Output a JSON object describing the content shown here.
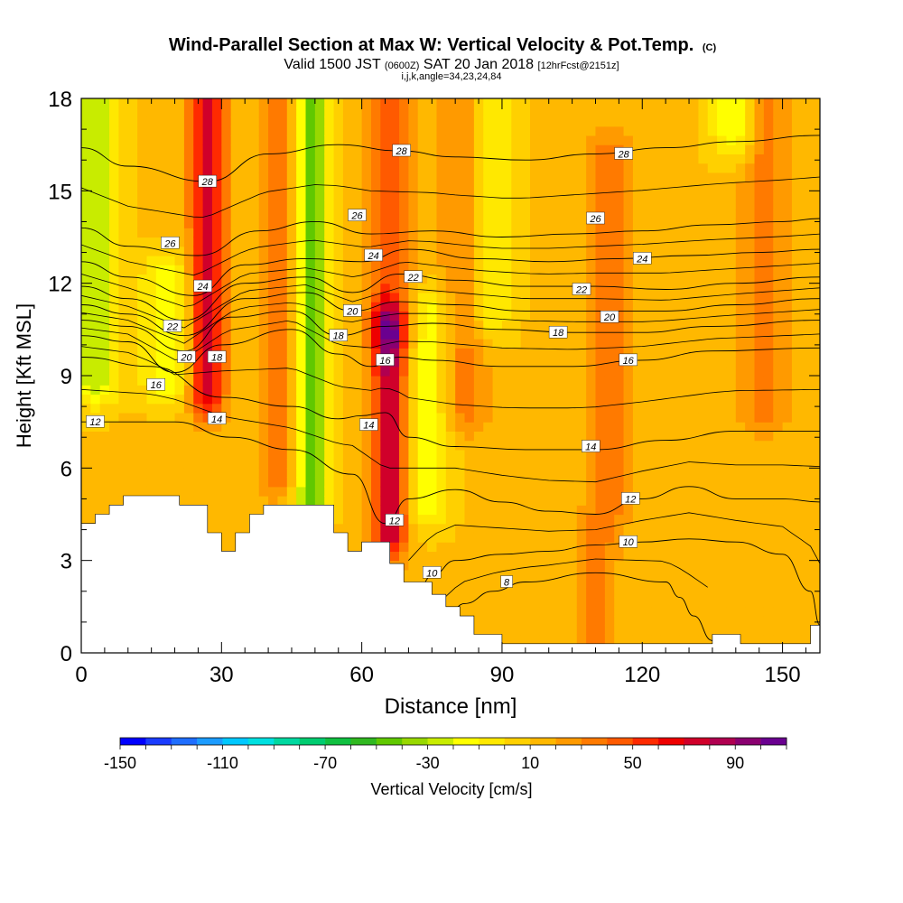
{
  "chart_data": {
    "type": "heatmap",
    "title": "Wind-Parallel Section at Max W: Vertical Velocity & Pot.Temp.",
    "title_mark": "(C)",
    "subtitle": {
      "part1": "Valid 1500 JST",
      "part2": "(0600Z)",
      "part3": "SAT 20 Jan 2018",
      "part4": "[12hrFcst@2151z]"
    },
    "subtitle2": "i,j,k,angle=34,23,24,84",
    "xlabel": "Distance [nm]",
    "ylabel": "Height [Kft MSL]",
    "xlim": [
      0,
      158
    ],
    "ylim": [
      0,
      18
    ],
    "x_ticks": [
      0,
      30,
      60,
      90,
      120,
      150
    ],
    "y_ticks": [
      0,
      3,
      6,
      9,
      12,
      15,
      18
    ],
    "grid": false,
    "colorbar": {
      "label": "Vertical Velocity [cm/s]",
      "min": -150,
      "max": 110,
      "step": 10,
      "tick_labels": [
        "-150",
        "-110",
        "-70",
        "-30",
        "10",
        "50",
        "90"
      ],
      "colors": [
        "#0000ff",
        "#1a3cff",
        "#1f6eff",
        "#1c9cff",
        "#00c8ff",
        "#00e0e0",
        "#00d8a0",
        "#00cc70",
        "#10c040",
        "#30b820",
        "#60c800",
        "#98d800",
        "#c8ec00",
        "#ffff00",
        "#ffe800",
        "#ffd000",
        "#ffb800",
        "#ff9a00",
        "#ff7a00",
        "#ff5a00",
        "#ff2a00",
        "#ee0000",
        "#d0002a",
        "#b00050",
        "#8a0070",
        "#6a0090"
      ]
    },
    "updraft_columns": [
      {
        "x": 27,
        "height_range": [
          8.5,
          18
        ],
        "w": 60
      },
      {
        "x": 43,
        "height_range": [
          6,
          18
        ],
        "w": 30
      },
      {
        "x": 66,
        "height_range": [
          4,
          10.5
        ],
        "w": 70
      },
      {
        "x": 66,
        "height_range": [
          10.5,
          18
        ],
        "w": 30
      },
      {
        "x": 82,
        "height_range": [
          8,
          18
        ],
        "w": 25
      },
      {
        "x": 113,
        "height_range": [
          5,
          16
        ],
        "w": 25
      },
      {
        "x": 146,
        "height_range": [
          8,
          18
        ],
        "w": 25
      },
      {
        "x": 110,
        "height_range": [
          0.5,
          3.5
        ],
        "w": 20
      }
    ],
    "downdraft_columns": [
      {
        "x": 49,
        "height_range": [
          5,
          18
        ],
        "w": -60
      },
      {
        "x": 3,
        "height_range": [
          9,
          18
        ],
        "w": -40
      },
      {
        "x": 18,
        "height_range": [
          9,
          12
        ],
        "w": -30
      },
      {
        "x": 74,
        "height_range": [
          5,
          11
        ],
        "w": -30
      },
      {
        "x": 87,
        "height_range": [
          11,
          18
        ],
        "w": -25
      },
      {
        "x": 140,
        "height_range": [
          17,
          18
        ],
        "w": -35
      }
    ],
    "terrain": {
      "x": [
        0,
        3,
        6,
        9,
        12,
        15,
        18,
        21,
        24,
        27,
        30,
        33,
        36,
        39,
        42,
        45,
        48,
        51,
        54,
        57,
        60,
        63,
        66,
        69,
        72,
        75,
        78,
        81,
        84,
        87,
        90,
        93,
        96,
        99,
        102,
        105,
        108,
        111,
        114,
        117,
        120,
        123,
        126,
        129,
        132,
        135,
        138,
        141,
        144,
        147,
        150,
        153,
        156,
        158
      ],
      "height": [
        4.2,
        4.5,
        4.8,
        5.1,
        5.1,
        5.1,
        5.1,
        4.8,
        4.8,
        3.9,
        3.3,
        3.9,
        4.5,
        4.8,
        4.8,
        4.8,
        4.8,
        4.8,
        3.9,
        3.3,
        3.6,
        3.6,
        2.9,
        2.3,
        2.3,
        1.9,
        1.5,
        1.2,
        0.6,
        0.6,
        0.3,
        0.3,
        0.3,
        0.3,
        0.3,
        0.3,
        0.3,
        0.3,
        0.3,
        0.3,
        0.3,
        0.3,
        0.3,
        0.3,
        0.3,
        0.6,
        0.6,
        0.3,
        0.3,
        0.3,
        0.3,
        0.3,
        0.9,
        0.9
      ]
    },
    "isentropes": [
      {
        "theta": 8,
        "x": [
          76,
          82,
          88,
          95,
          110,
          125,
          128,
          131,
          135
        ],
        "y": [
          0.5,
          1.6,
          2.0,
          2.3,
          2.6,
          2.3,
          1.8,
          1.2,
          0.4
        ],
        "label_at": [
          91,
          2.2
        ]
      },
      {
        "theta": 10,
        "x": [
          70,
          75,
          80,
          90,
          100,
          110,
          120,
          130,
          140,
          150,
          156,
          158
        ],
        "y": [
          1.0,
          2.5,
          3.0,
          3.2,
          3.3,
          3.5,
          3.6,
          3.7,
          3.6,
          3.2,
          2.0,
          0.9
        ],
        "label_at": [
          75,
          2.6
        ]
      },
      {
        "theta": 12,
        "x": [
          0,
          20,
          32,
          45,
          58,
          65,
          70,
          80,
          90,
          100,
          110,
          120,
          130,
          140,
          150,
          158
        ],
        "y": [
          7.5,
          7.5,
          7.0,
          6.6,
          5.8,
          4.2,
          5.0,
          5.3,
          4.9,
          4.6,
          4.5,
          5.0,
          5.4,
          5.0,
          5.0,
          4.9
        ],
        "label_at": [
          113,
          4.8
        ]
      },
      {
        "theta": 14,
        "x": [
          0,
          15,
          30,
          45,
          55,
          60,
          65,
          70,
          80,
          95,
          110,
          125,
          140,
          158
        ],
        "y": [
          9.6,
          9.3,
          8.3,
          8.0,
          7.6,
          7.7,
          7.8,
          7.0,
          6.7,
          6.6,
          6.6,
          6.9,
          7.2,
          7.2
        ],
        "label_at": [
          113,
          6.7
        ]
      },
      {
        "theta": 16,
        "x": [
          0,
          10,
          20,
          30,
          45,
          55,
          62,
          68,
          75,
          90,
          105,
          120,
          135,
          158
        ],
        "y": [
          10.3,
          10.1,
          9.1,
          10.0,
          10.5,
          9.7,
          9.3,
          9.6,
          9.5,
          9.3,
          9.3,
          9.5,
          9.8,
          9.9
        ],
        "label_at": [
          113,
          9.5
        ]
      },
      {
        "theta": 18,
        "x": [
          0,
          10,
          22,
          32,
          45,
          55,
          65,
          75,
          90,
          105,
          120,
          135,
          158
        ],
        "y": [
          10.8,
          10.6,
          9.8,
          10.9,
          11.1,
          10.3,
          10.6,
          10.7,
          10.5,
          10.4,
          10.4,
          10.6,
          10.8
        ],
        "label_at": [
          113,
          10.4
        ]
      },
      {
        "theta": 20,
        "x": [
          0,
          10,
          22,
          35,
          48,
          58,
          68,
          80,
          95,
          110,
          125,
          140,
          158
        ],
        "y": [
          11.3,
          11.0,
          10.3,
          11.5,
          11.7,
          11.1,
          11.4,
          11.3,
          11.1,
          11.1,
          11.1,
          11.3,
          11.5
        ],
        "label_at": [
          113,
          11.1
        ]
      },
      {
        "theta": 22,
        "x": [
          0,
          10,
          22,
          35,
          48,
          58,
          68,
          80,
          95,
          110,
          125,
          140,
          158
        ],
        "y": [
          11.9,
          11.5,
          10.8,
          12.0,
          12.2,
          11.7,
          12.3,
          12.1,
          11.9,
          11.9,
          11.8,
          12.0,
          12.2
        ],
        "label_at": [
          113,
          11.9
        ]
      },
      {
        "theta": 24,
        "x": [
          0,
          10,
          24,
          35,
          48,
          60,
          70,
          85,
          100,
          115,
          130,
          145,
          158
        ],
        "y": [
          12.7,
          12.2,
          11.6,
          12.6,
          12.8,
          12.7,
          13.1,
          12.8,
          12.7,
          12.8,
          12.9,
          13.0,
          13.1
        ],
        "label_at": [
          113,
          12.8
        ]
      },
      {
        "theta": 26,
        "x": [
          0,
          10,
          25,
          38,
          50,
          62,
          75,
          90,
          105,
          120,
          135,
          150,
          158
        ],
        "y": [
          13.8,
          13.2,
          12.9,
          13.7,
          14.0,
          13.6,
          13.7,
          13.5,
          13.6,
          13.7,
          13.9,
          14.0,
          14.1
        ],
        "label_at": [
          113,
          13.7
        ]
      },
      {
        "theta": 28,
        "x": [
          0,
          10,
          27,
          40,
          55,
          68,
          80,
          95,
          110,
          125,
          140,
          158
        ],
        "y": [
          16.4,
          15.8,
          15.3,
          16.2,
          16.5,
          16.3,
          16.1,
          16.0,
          16.2,
          16.4,
          16.6,
          16.8
        ],
        "label_at": [
          113,
          16.2
        ]
      }
    ],
    "contour_labels": [
      {
        "text": "28",
        "x": 27,
        "y": 15.3
      },
      {
        "text": "28",
        "x": 68.5,
        "y": 16.3
      },
      {
        "text": "28",
        "x": 116,
        "y": 16.2
      },
      {
        "text": "26",
        "x": 19,
        "y": 13.3
      },
      {
        "text": "26",
        "x": 59,
        "y": 14.2
      },
      {
        "text": "26",
        "x": 110,
        "y": 14.1
      },
      {
        "text": "24",
        "x": 26,
        "y": 11.9
      },
      {
        "text": "24",
        "x": 62.5,
        "y": 12.9
      },
      {
        "text": "24",
        "x": 120,
        "y": 12.8
      },
      {
        "text": "22",
        "x": 19.5,
        "y": 10.6
      },
      {
        "text": "22",
        "x": 71,
        "y": 12.2
      },
      {
        "text": "22",
        "x": 107,
        "y": 11.8
      },
      {
        "text": "20",
        "x": 22.5,
        "y": 9.6
      },
      {
        "text": "20",
        "x": 58,
        "y": 11.1
      },
      {
        "text": "20",
        "x": 113,
        "y": 10.9
      },
      {
        "text": "18",
        "x": 29,
        "y": 9.6
      },
      {
        "text": "18",
        "x": 55,
        "y": 10.3
      },
      {
        "text": "18",
        "x": 102,
        "y": 10.4
      },
      {
        "text": "16",
        "x": 16,
        "y": 8.7
      },
      {
        "text": "16",
        "x": 65,
        "y": 9.5
      },
      {
        "text": "16",
        "x": 117,
        "y": 9.5
      },
      {
        "text": "14",
        "x": 29,
        "y": 7.6
      },
      {
        "text": "14",
        "x": 61.5,
        "y": 7.4
      },
      {
        "text": "14",
        "x": 109,
        "y": 6.7
      },
      {
        "text": "12",
        "x": 3,
        "y": 7.5
      },
      {
        "text": "12",
        "x": 67,
        "y": 4.3
      },
      {
        "text": "12",
        "x": 117.5,
        "y": 5.0
      },
      {
        "text": "10",
        "x": 75,
        "y": 2.6
      },
      {
        "text": "10",
        "x": 117,
        "y": 3.6
      },
      {
        "text": "8",
        "x": 91,
        "y": 2.3
      }
    ]
  }
}
